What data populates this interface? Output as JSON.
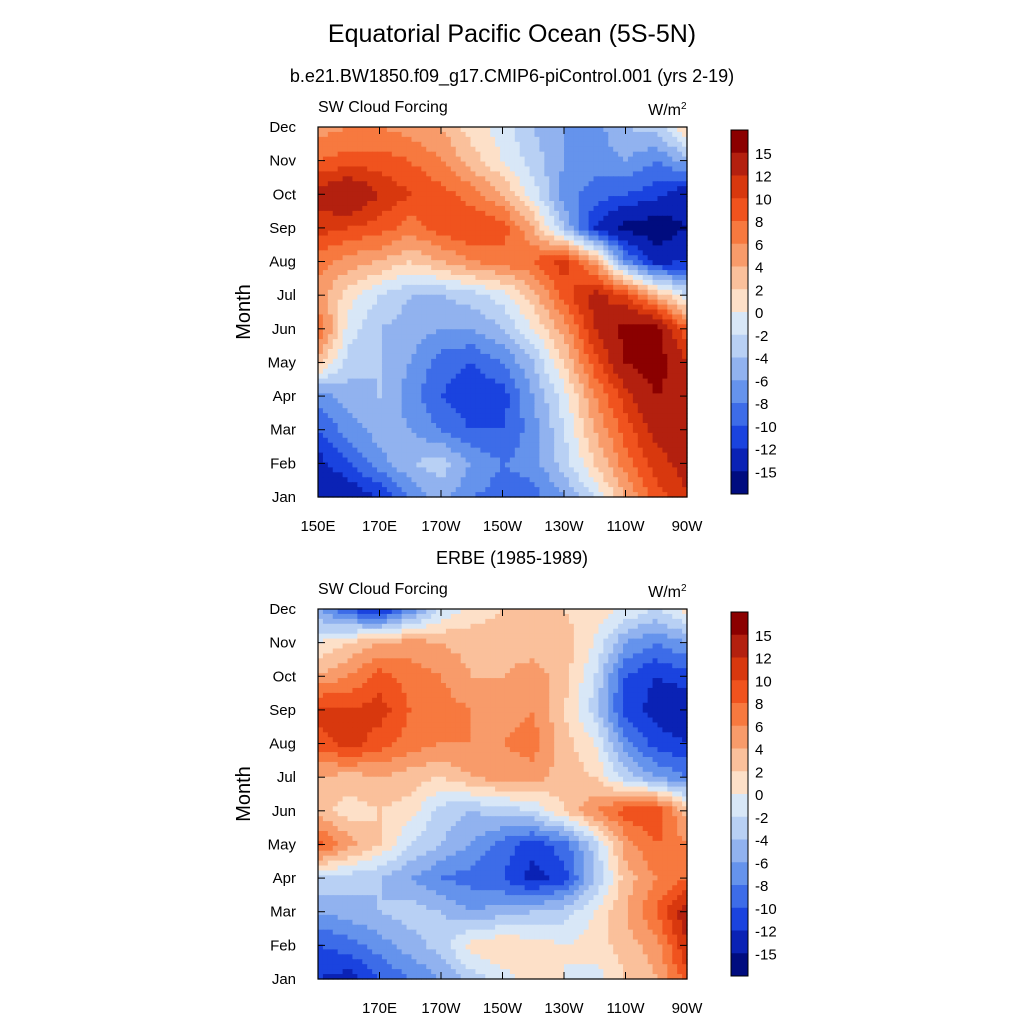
{
  "figure": {
    "title": "Equatorial Pacific Ocean (5S-5N)",
    "units": "W/m",
    "units_sup": "2"
  },
  "colorbar": {
    "labels": [
      "15",
      "12",
      "10",
      "8",
      "6",
      "4",
      "2",
      "0",
      "-2",
      "-4",
      "-6",
      "-8",
      "-10",
      "-12",
      "-15"
    ],
    "colors": [
      "#8b0000",
      "#b3200f",
      "#d8380e",
      "#f0531e",
      "#f7793f",
      "#f89b6a",
      "#fac09b",
      "#fde0c8",
      "#d8e7f7",
      "#b8d0f4",
      "#91b2ef",
      "#6593ec",
      "#3d6ce8",
      "#1a43df",
      "#0a22b5",
      "#000c7f"
    ]
  },
  "chart_data": [
    {
      "type": "heatmap",
      "title": "b.e21.BW1850.f09_g17.CMIP6-piControl.001 (yrs 2-19)",
      "left_label": "SW Cloud Forcing",
      "ylabel": "Month",
      "x_ticklabels": [
        "150E",
        "170E",
        "170W",
        "150W",
        "130W",
        "110W",
        "90W"
      ],
      "y_ticklabels": [
        "Jan",
        "Feb",
        "Mar",
        "Apr",
        "May",
        "Jun",
        "Jul",
        "Aug",
        "Sep",
        "Oct",
        "Nov",
        "Dec"
      ],
      "xlim": [
        "150E",
        "90W"
      ],
      "levels": [
        -15,
        -12,
        -10,
        -8,
        -6,
        -4,
        -2,
        0,
        2,
        4,
        6,
        8,
        10,
        12,
        15
      ],
      "x": [
        "150E",
        "160E",
        "170E",
        "180",
        "170W",
        "160W",
        "150W",
        "140W",
        "130W",
        "120W",
        "110W",
        "100W",
        "90W"
      ],
      "y": [
        "Jan",
        "Feb",
        "Mar",
        "Apr",
        "May",
        "Jun",
        "Jul",
        "Aug",
        "Sep",
        "Oct",
        "Nov",
        "Dec"
      ],
      "z": [
        [
          -15,
          -14,
          -12,
          -8,
          -5,
          -8,
          -9,
          -9,
          -6,
          -2,
          4,
          9,
          12
        ],
        [
          -13,
          -10,
          -7,
          -4,
          -3,
          -6,
          -8,
          -7,
          -3,
          2,
          7,
          11,
          13
        ],
        [
          -10,
          -7,
          -5,
          -6,
          -8,
          -10,
          -10,
          -7,
          -2,
          4,
          9,
          13,
          14
        ],
        [
          -7,
          -5,
          -4,
          -7,
          -10,
          -12,
          -11,
          -6,
          -1,
          6,
          11,
          15,
          13
        ],
        [
          3,
          -3,
          -4,
          -6,
          -9,
          -10,
          -8,
          -4,
          2,
          9,
          15,
          17,
          12
        ],
        [
          8,
          -1,
          -4,
          -5,
          -6,
          -6,
          -4,
          0,
          5,
          12,
          16,
          16,
          8
        ],
        [
          5,
          1,
          -2,
          -4,
          -4,
          -3,
          -1,
          3,
          9,
          13,
          10,
          4,
          -2
        ],
        [
          7,
          5,
          4,
          2,
          4,
          6,
          7,
          8,
          11,
          5,
          -7,
          -13,
          -12
        ],
        [
          11,
          10,
          9,
          7,
          9,
          10,
          9,
          4,
          -4,
          -12,
          -16,
          -17,
          -15
        ],
        [
          13,
          15,
          12,
          10,
          9,
          7,
          4,
          -1,
          -7,
          -9,
          -10,
          -11,
          -14
        ],
        [
          8,
          9,
          9,
          8,
          6,
          3,
          0,
          -3,
          -6,
          -7,
          -6,
          -8,
          -5
        ],
        [
          5,
          6,
          6,
          5,
          4,
          1,
          -1,
          -4,
          -6,
          -7,
          -4,
          -3,
          2
        ]
      ]
    },
    {
      "type": "heatmap",
      "title": "ERBE (1985-1989)",
      "left_label": "SW Cloud Forcing",
      "ylabel": "Month",
      "x_ticklabels": [
        "170E",
        "170W",
        "150W",
        "130W",
        "110W",
        "90W"
      ],
      "y_ticklabels": [
        "Jan",
        "Feb",
        "Mar",
        "Apr",
        "May",
        "Jun",
        "Jul",
        "Aug",
        "Sep",
        "Oct",
        "Nov",
        "Dec"
      ],
      "levels": [
        -15,
        -12,
        -10,
        -8,
        -6,
        -4,
        -2,
        0,
        2,
        4,
        6,
        8,
        10,
        12,
        15
      ],
      "x": [
        "150E",
        "160E",
        "170E",
        "180",
        "170W",
        "160W",
        "150W",
        "140W",
        "130W",
        "120W",
        "110W",
        "100W",
        "90W"
      ],
      "y": [
        "Jan",
        "Feb",
        "Mar",
        "Apr",
        "May",
        "Jun",
        "Jul",
        "Aug",
        "Sep",
        "Oct",
        "Nov",
        "Dec"
      ],
      "z": [
        [
          -12,
          -13,
          -10,
          -8,
          -6,
          -3,
          -1,
          1,
          0,
          -1,
          2,
          4,
          9
        ],
        [
          -10,
          -9,
          -7,
          -5,
          -3,
          1,
          2,
          1,
          0,
          1,
          3,
          5,
          12
        ],
        [
          -6,
          -5,
          -4,
          -3,
          -4,
          -6,
          -5,
          -4,
          -3,
          0,
          4,
          8,
          14
        ],
        [
          -2,
          -3,
          -4,
          -6,
          -8,
          -9,
          -10,
          -13,
          -11,
          -4,
          3,
          6,
          8
        ],
        [
          9,
          5,
          2,
          -2,
          -4,
          -6,
          -9,
          -11,
          -9,
          -3,
          5,
          8,
          6
        ],
        [
          3,
          1,
          2,
          1,
          -3,
          -4,
          -3,
          -2,
          2,
          6,
          9,
          10,
          3
        ],
        [
          4,
          3,
          4,
          3,
          2,
          4,
          5,
          5,
          3,
          2,
          -3,
          -6,
          -8
        ],
        [
          9,
          11,
          9,
          7,
          6,
          6,
          6,
          7,
          3,
          0,
          -7,
          -11,
          -12
        ],
        [
          11,
          10,
          11,
          8,
          7,
          6,
          5,
          6,
          2,
          -3,
          -11,
          -13,
          -14
        ],
        [
          4,
          6,
          9,
          7,
          6,
          4,
          4,
          5,
          3,
          -2,
          -10,
          -12,
          -11
        ],
        [
          0,
          2,
          4,
          5,
          4,
          3,
          3,
          3,
          3,
          0,
          -6,
          -8,
          -6
        ],
        [
          -6,
          -10,
          -13,
          -8,
          -2,
          1,
          2,
          2,
          2,
          1,
          0,
          -2,
          1
        ]
      ]
    }
  ]
}
